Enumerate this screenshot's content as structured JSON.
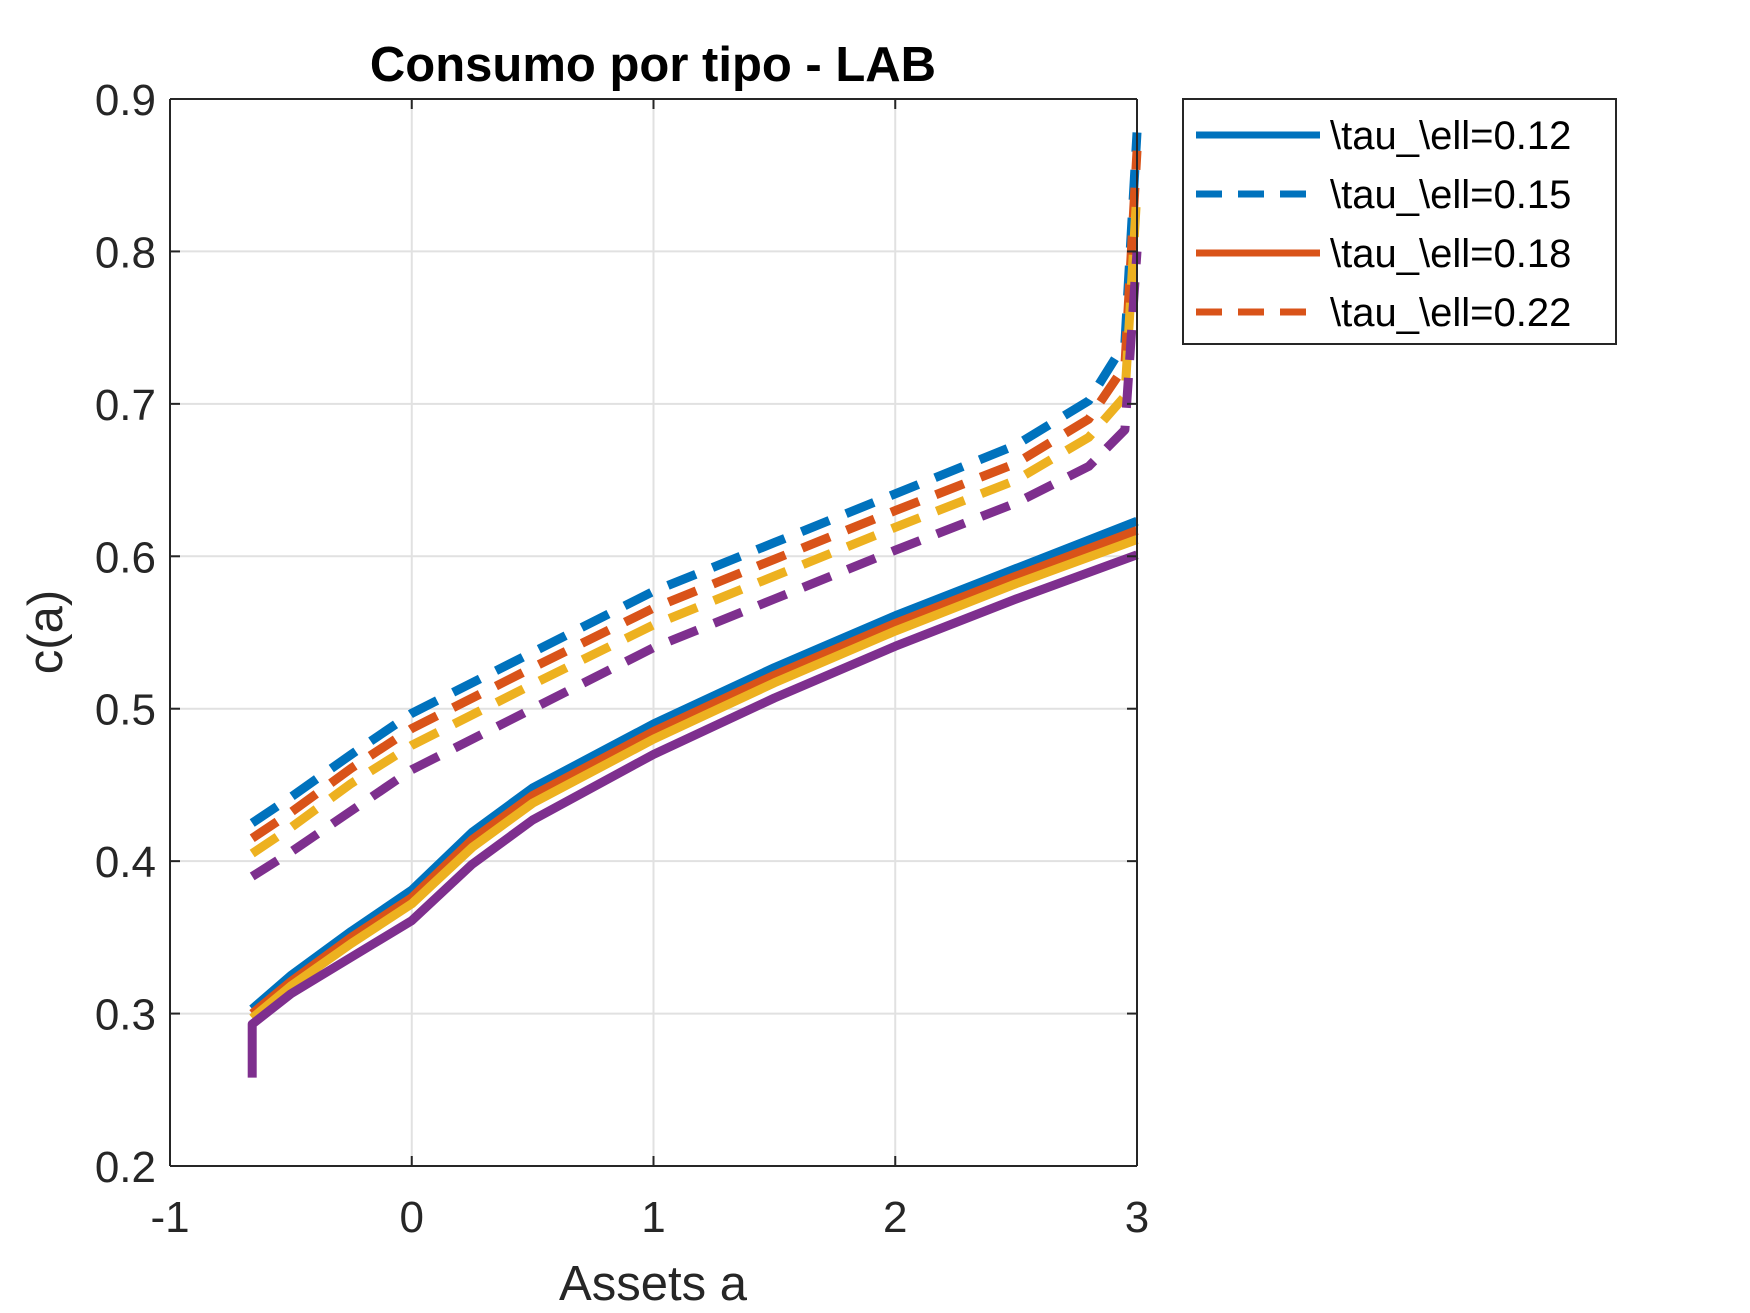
{
  "chart_data": {
    "type": "line",
    "title": "Consumo por tipo - LAB",
    "xlabel": "Assets a",
    "ylabel": "c(a)",
    "xlim": [
      -1,
      3
    ],
    "ylim": [
      0.2,
      0.9
    ],
    "xticks": [
      -1,
      0,
      1,
      2,
      3
    ],
    "xtick_labels": [
      "-1",
      "0",
      "1",
      "2",
      "3"
    ],
    "yticks": [
      0.2,
      0.3,
      0.4,
      0.5,
      0.6,
      0.7,
      0.8,
      0.9
    ],
    "ytick_labels": [
      "0.2",
      "0.3",
      "0.4",
      "0.5",
      "0.6",
      "0.7",
      "0.8",
      "0.9"
    ],
    "grid": true,
    "legend_position": "outside-top-right",
    "series": [
      {
        "name": "\\tau_\\ell=0.12",
        "color": "#0072BD",
        "style": "solid",
        "in_legend": true,
        "x": [
          -0.66,
          -0.5,
          -0.25,
          0,
          0.25,
          0.5,
          1,
          1.5,
          2,
          2.5,
          3
        ],
        "y": [
          0.303,
          0.325,
          0.354,
          0.381,
          0.419,
          0.448,
          0.49,
          0.527,
          0.561,
          0.592,
          0.623
        ]
      },
      {
        "name": "\\tau_\\ell=0.15",
        "color": "#0072BD",
        "style": "dashed",
        "in_legend": true,
        "x": [
          -0.66,
          -0.5,
          -0.25,
          0,
          0.5,
          1,
          1.5,
          2,
          2.5,
          2.8,
          2.95,
          3.0
        ],
        "y": [
          0.425,
          0.442,
          0.47,
          0.497,
          0.537,
          0.577,
          0.609,
          0.641,
          0.673,
          0.702,
          0.74,
          0.878
        ]
      },
      {
        "name": "\\tau_\\ell=0.18",
        "color": "#D95319",
        "style": "solid",
        "in_legend": true,
        "x": [
          -0.66,
          -0.5,
          -0.25,
          0,
          0.25,
          0.5,
          1,
          1.5,
          2,
          2.5,
          3
        ],
        "y": [
          0.3,
          0.321,
          0.35,
          0.376,
          0.414,
          0.443,
          0.485,
          0.522,
          0.556,
          0.587,
          0.617
        ]
      },
      {
        "name": "\\tau_\\ell=0.22",
        "color": "#D95319",
        "style": "dashed",
        "in_legend": true,
        "x": [
          -0.66,
          -0.5,
          -0.25,
          0,
          0.5,
          1,
          1.5,
          2,
          2.5,
          2.8,
          2.95,
          3.0
        ],
        "y": [
          0.415,
          0.432,
          0.461,
          0.487,
          0.527,
          0.566,
          0.598,
          0.63,
          0.661,
          0.69,
          0.725,
          0.866
        ]
      },
      {
        "name": "",
        "color": "#EDB120",
        "style": "solid",
        "in_legend": false,
        "x": [
          -0.66,
          -0.5,
          -0.25,
          0,
          0.25,
          0.5,
          1,
          1.5,
          2,
          2.5,
          3
        ],
        "y": [
          0.297,
          0.318,
          0.346,
          0.372,
          0.409,
          0.438,
          0.48,
          0.517,
          0.551,
          0.582,
          0.611
        ]
      },
      {
        "name": "",
        "color": "#EDB120",
        "style": "dashed",
        "in_legend": false,
        "x": [
          -0.66,
          -0.5,
          -0.25,
          0,
          0.5,
          1,
          1.5,
          2,
          2.5,
          2.8,
          2.95,
          3.0
        ],
        "y": [
          0.405,
          0.422,
          0.451,
          0.476,
          0.516,
          0.555,
          0.587,
          0.619,
          0.65,
          0.678,
          0.705,
          0.84
        ]
      },
      {
        "name": "",
        "color": "#7E2F8E",
        "style": "solid",
        "in_legend": false,
        "x": [
          -0.66,
          -0.66,
          -0.5,
          -0.25,
          0,
          0.25,
          0.5,
          1,
          1.5,
          2,
          2.5,
          3
        ],
        "y": [
          0.258,
          0.293,
          0.313,
          0.337,
          0.361,
          0.398,
          0.427,
          0.47,
          0.507,
          0.541,
          0.572,
          0.601
        ]
      },
      {
        "name": "",
        "color": "#7E2F8E",
        "style": "dashed",
        "in_legend": false,
        "x": [
          -0.66,
          -0.5,
          -0.25,
          0,
          0.5,
          1,
          1.5,
          2,
          2.5,
          2.8,
          2.95,
          3.0
        ],
        "y": [
          0.39,
          0.406,
          0.433,
          0.46,
          0.5,
          0.54,
          0.572,
          0.604,
          0.635,
          0.659,
          0.683,
          0.8
        ]
      }
    ]
  }
}
